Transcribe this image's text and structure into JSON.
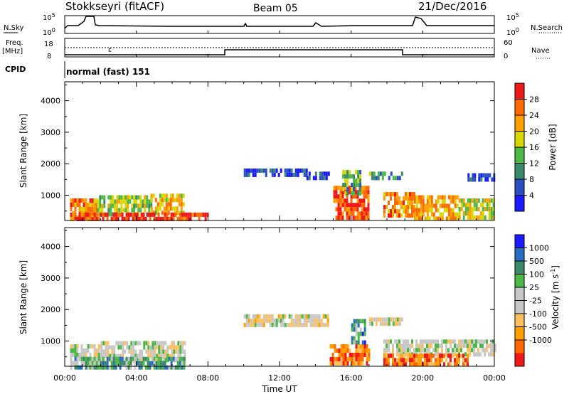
{
  "header": {
    "station": "Stokkseyri (fitACF)",
    "beam": "Beam 05",
    "date": "21/Dec/2016"
  },
  "strip1": {
    "left_label": "N.Sky",
    "y_top_left": "10^5",
    "y_bot_left": "10^0",
    "y_top_right": "10^5",
    "y_bot_right": "10^0",
    "right_label": "N.Search"
  },
  "strip2": {
    "left_label_1": "Freq.",
    "left_label_2": "[MHz]",
    "y_top_left": "18",
    "y_bot_left": "8",
    "y_top_right": "60",
    "y_bot_right": "0",
    "right_label": "Nave"
  },
  "cpid": {
    "label": "CPID",
    "value": "normal (fast) 151"
  },
  "colors": {
    "power_scale": [
      "#1a1aff",
      "#2a4fbf",
      "#3b8a6a",
      "#4cb848",
      "#d8d800",
      "#ff9f00",
      "#ff6a00",
      "#ee1a1a"
    ],
    "velocity_scale": [
      "#ee1a1a",
      "#ff6a00",
      "#ff9f00",
      "#ffc060",
      "#c8c8c8",
      "#c8c8c8",
      "#4cb848",
      "#3b8a6a",
      "#2a6fbf",
      "#1a1aff"
    ]
  },
  "chart_data": [
    {
      "type": "heatmap",
      "title": "",
      "ylabel": "Slant Range [km]",
      "xlabel": "",
      "x_ticks": [
        "00:00",
        "04:00",
        "08:00",
        "12:00",
        "16:00",
        "20:00",
        "00:00"
      ],
      "y_ticks": [
        "1000",
        "2000",
        "3000",
        "4000"
      ],
      "ylim": [
        200,
        4600
      ],
      "colorbar": {
        "label": "Power [dB]",
        "ticks": [
          "4",
          "8",
          "12",
          "16",
          "20",
          "24",
          "28"
        ],
        "range": [
          0,
          32
        ]
      },
      "regions": [
        {
          "t0": 0.3,
          "t1": 1.8,
          "r0": 300,
          "r1": 900,
          "level": 0.75
        },
        {
          "t0": 1.8,
          "t1": 4.8,
          "r0": 350,
          "r1": 1000,
          "level": 0.5
        },
        {
          "t0": 4.8,
          "t1": 6.7,
          "r0": 400,
          "r1": 1050,
          "level": 0.65
        },
        {
          "t0": 0.3,
          "t1": 8.0,
          "r0": 200,
          "r1": 450,
          "level": 0.9
        },
        {
          "t0": 10.0,
          "t1": 13.5,
          "r0": 1600,
          "r1": 1850,
          "level": 0.15
        },
        {
          "t0": 13.5,
          "t1": 14.7,
          "r0": 1550,
          "r1": 1750,
          "level": 0.15
        },
        {
          "t0": 15.0,
          "t1": 17.0,
          "r0": 300,
          "r1": 1300,
          "level": 0.85
        },
        {
          "t0": 15.5,
          "t1": 16.5,
          "r0": 1100,
          "r1": 1800,
          "level": 0.4
        },
        {
          "t0": 17.0,
          "t1": 18.8,
          "r0": 1500,
          "r1": 1750,
          "level": 0.35
        },
        {
          "t0": 17.8,
          "t1": 19.5,
          "r0": 300,
          "r1": 1100,
          "level": 0.75
        },
        {
          "t0": 19.5,
          "t1": 22.0,
          "r0": 300,
          "r1": 1000,
          "level": 0.7
        },
        {
          "t0": 22.0,
          "t1": 24.0,
          "r0": 300,
          "r1": 900,
          "level": 0.55
        },
        {
          "t0": 22.5,
          "t1": 24.0,
          "r0": 1500,
          "r1": 1700,
          "level": 0.12
        }
      ]
    },
    {
      "type": "heatmap",
      "title": "",
      "ylabel": "Slant Range [km]",
      "xlabel": "Time UT",
      "x_ticks": [
        "00:00",
        "04:00",
        "08:00",
        "12:00",
        "16:00",
        "20:00",
        "00:00"
      ],
      "y_ticks": [
        "1000",
        "2000",
        "3000",
        "4000"
      ],
      "ylim": [
        200,
        4600
      ],
      "colorbar": {
        "label": "Velocity [m s^-1]",
        "ticks": [
          "1000",
          "500",
          "100",
          "25",
          "-25",
          "-100",
          "-500",
          "-1000"
        ]
      },
      "regions": [
        {
          "t0": 0.3,
          "t1": 2.0,
          "r0": 300,
          "r1": 900,
          "level": 0.5
        },
        {
          "t0": 2.0,
          "t1": 6.7,
          "r0": 400,
          "r1": 1000,
          "level": 0.5
        },
        {
          "t0": 0.3,
          "t1": 6.7,
          "r0": 200,
          "r1": 500,
          "level": 0.68
        },
        {
          "t0": 10.0,
          "t1": 14.7,
          "r0": 1550,
          "r1": 1850,
          "level": 0.45
        },
        {
          "t0": 14.8,
          "t1": 17.0,
          "r0": 300,
          "r1": 900,
          "level": 0.2
        },
        {
          "t0": 16.0,
          "t1": 16.8,
          "r0": 900,
          "r1": 1700,
          "level": 0.75
        },
        {
          "t0": 17.0,
          "t1": 18.8,
          "r0": 1550,
          "r1": 1750,
          "level": 0.48
        },
        {
          "t0": 17.8,
          "t1": 24.0,
          "r0": 600,
          "r1": 1050,
          "level": 0.5
        },
        {
          "t0": 17.8,
          "t1": 22.5,
          "r0": 300,
          "r1": 600,
          "level": 0.2
        }
      ]
    }
  ]
}
